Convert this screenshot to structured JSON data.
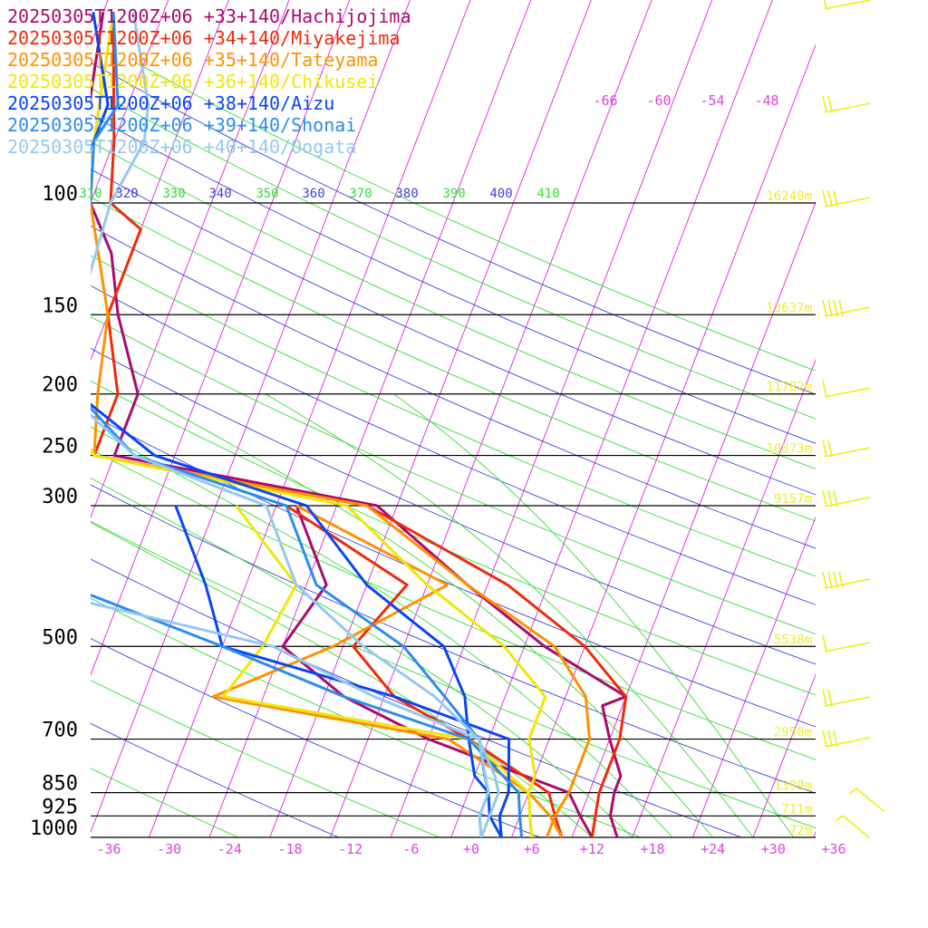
{
  "chart_data": {
    "type": "line",
    "title": "",
    "xlabel": "",
    "ylabel": "",
    "x_axis": {
      "kind": "skewed temperature",
      "unit": "°C",
      "xlim": [
        -36,
        36
      ],
      "ticks": [
        -36,
        -30,
        -24,
        -18,
        -12,
        -6,
        0,
        6,
        12,
        18,
        24,
        30,
        36
      ],
      "tick_labels": [
        "-36",
        "-30",
        "-24",
        "-18",
        "-12",
        "-6",
        "+0",
        "+6",
        "+12",
        "+18",
        "+24",
        "+30",
        "+36"
      ]
    },
    "y_axis": {
      "kind": "pressure",
      "scale": "log",
      "unit": "hPa",
      "ylim": [
        1000,
        100
      ],
      "ticks": [
        100,
        150,
        200,
        250,
        300,
        500,
        700,
        850,
        925,
        1000
      ],
      "tick_labels": [
        "100",
        "150",
        "200",
        "250",
        "300",
        "500",
        "700",
        "850",
        "925",
        "1000"
      ]
    },
    "heights": [
      {
        "p": 100,
        "label": "16240m"
      },
      {
        "p": 150,
        "label": "13637m"
      },
      {
        "p": 200,
        "label": "11782m"
      },
      {
        "p": 250,
        "label": "10373m"
      },
      {
        "p": 300,
        "label": "9157m"
      },
      {
        "p": 500,
        "label": "5538m"
      },
      {
        "p": 700,
        "label": "2950m"
      },
      {
        "p": 850,
        "label": "1399m"
      },
      {
        "p": 925,
        "label": "711m"
      },
      {
        "p": 1000,
        "label": "72m"
      }
    ],
    "upper_temp_labels": [
      "-66",
      "-60",
      "-54",
      "-48"
    ],
    "theta_labels": [
      "310",
      "320",
      "330",
      "340",
      "350",
      "360",
      "370",
      "380",
      "390",
      "400",
      "410"
    ],
    "grid": true,
    "legend_position": "top-left",
    "series": [
      {
        "name": "20250305T1200Z+06 +33+140/Hachijojima",
        "color": "#aa0a6e",
        "temp": [
          [
            1000,
            14.5
          ],
          [
            925,
            13
          ],
          [
            850,
            12.5
          ],
          [
            800,
            12.5
          ],
          [
            700,
            10
          ],
          [
            620,
            8
          ],
          [
            600,
            10
          ],
          [
            500,
            0
          ],
          [
            400,
            -10
          ],
          [
            300,
            -22
          ],
          [
            250,
            -50
          ],
          [
            220,
            -50
          ],
          [
            200,
            -50
          ],
          [
            150,
            -55
          ],
          [
            120,
            -58
          ],
          [
            100,
            -62
          ],
          [
            80,
            -65
          ],
          [
            50,
            -68
          ]
        ],
        "dew": [
          [
            1000,
            12
          ],
          [
            925,
            10
          ],
          [
            850,
            8
          ],
          [
            700,
            -8
          ],
          [
            600,
            -18
          ],
          [
            500,
            -26
          ],
          [
            400,
            -24
          ],
          [
            300,
            -30
          ]
        ]
      },
      {
        "name": "20250305T1200Z+06 +34+140/Miyakejima",
        "color": "#f02a0a",
        "temp": [
          [
            1000,
            12
          ],
          [
            925,
            11.5
          ],
          [
            850,
            11
          ],
          [
            800,
            11
          ],
          [
            700,
            11
          ],
          [
            600,
            10
          ],
          [
            500,
            4
          ],
          [
            400,
            -6
          ],
          [
            300,
            -23
          ],
          [
            250,
            -52
          ],
          [
            200,
            -52
          ],
          [
            150,
            -56
          ],
          [
            110,
            -56
          ],
          [
            100,
            -60
          ],
          [
            80,
            -62
          ],
          [
            50,
            -67
          ]
        ],
        "dew": [
          [
            1000,
            9
          ],
          [
            925,
            7.5
          ],
          [
            850,
            6
          ],
          [
            700,
            -4
          ],
          [
            600,
            -13
          ],
          [
            500,
            -19
          ],
          [
            400,
            -16
          ],
          [
            300,
            -31
          ]
        ]
      },
      {
        "name": "20250305T1200Z+06 +35+140/Tateyama",
        "color": "#ff9000",
        "temp": [
          [
            1000,
            7.5
          ],
          [
            925,
            7.5
          ],
          [
            850,
            8
          ],
          [
            800,
            8
          ],
          [
            700,
            8
          ],
          [
            600,
            6
          ],
          [
            500,
            1
          ],
          [
            400,
            -10
          ],
          [
            300,
            -23
          ],
          [
            250,
            -52
          ],
          [
            200,
            -54
          ],
          [
            150,
            -56
          ],
          [
            100,
            -62
          ],
          [
            80,
            -64
          ],
          [
            50,
            -67
          ]
        ],
        "dew": [
          [
            1000,
            9
          ],
          [
            925,
            7
          ],
          [
            850,
            4
          ],
          [
            700,
            -6
          ],
          [
            600,
            -31
          ],
          [
            500,
            -21
          ],
          [
            400,
            -12
          ],
          [
            300,
            -30
          ]
        ]
      },
      {
        "name": "20250305T1200Z+06 +36+140/Chikusei",
        "color": "#f0e60a",
        "temp": [
          [
            1000,
            6
          ],
          [
            925,
            5
          ],
          [
            850,
            4
          ],
          [
            800,
            4
          ],
          [
            700,
            2
          ],
          [
            600,
            2
          ],
          [
            500,
            -4
          ],
          [
            400,
            -14
          ],
          [
            300,
            -25
          ],
          [
            250,
            -52
          ],
          [
            200,
            -58
          ],
          [
            150,
            -58
          ],
          [
            100,
            -63
          ],
          [
            80,
            -64
          ],
          [
            50,
            -67
          ]
        ],
        "dew": [
          [
            1000,
            6
          ],
          [
            925,
            5
          ],
          [
            850,
            4
          ],
          [
            700,
            -4
          ],
          [
            600,
            -30
          ],
          [
            500,
            -28
          ],
          [
            400,
            -27
          ],
          [
            300,
            -36
          ]
        ]
      },
      {
        "name": "20250305T1200Z+06 +38+140/Aizu",
        "color": "#0a46f0",
        "temp": [
          [
            1000,
            3
          ],
          [
            925,
            1
          ],
          [
            850,
            0
          ],
          [
            800,
            -2
          ],
          [
            700,
            -4
          ],
          [
            600,
            -6
          ],
          [
            500,
            -10
          ],
          [
            400,
            -20
          ],
          [
            300,
            -29
          ],
          [
            250,
            -46
          ],
          [
            200,
            -56
          ],
          [
            150,
            -58
          ],
          [
            100,
            -64
          ],
          [
            70,
            -64
          ],
          [
            50,
            -69
          ]
        ],
        "dew": [
          [
            1000,
            3
          ],
          [
            925,
            2
          ],
          [
            850,
            2
          ],
          [
            700,
            0
          ],
          [
            600,
            -13
          ],
          [
            500,
            -32
          ],
          [
            400,
            -36
          ],
          [
            300,
            -42
          ]
        ]
      },
      {
        "name": "20250305T1200Z+06 +39+140/Shonai",
        "color": "#2a8cf0",
        "temp": [
          [
            1000,
            1
          ],
          [
            925,
            0
          ],
          [
            850,
            0
          ],
          [
            800,
            -1
          ],
          [
            700,
            -3
          ],
          [
            600,
            -8
          ],
          [
            500,
            -14
          ],
          [
            400,
            -25
          ],
          [
            300,
            -31
          ],
          [
            250,
            -48
          ],
          [
            200,
            -56
          ],
          [
            150,
            -60
          ],
          [
            100,
            -62
          ],
          [
            80,
            -64
          ],
          [
            70,
            -63
          ],
          [
            50,
            -67
          ]
        ],
        "dew": [
          [
            1000,
            5
          ],
          [
            925,
            4
          ],
          [
            850,
            3
          ],
          [
            700,
            -4
          ],
          [
            600,
            -18
          ],
          [
            500,
            -32
          ],
          [
            400,
            -50
          ],
          [
            300,
            -55
          ]
        ]
      },
      {
        "name": "20250305T1200Z+06 +40+140/Oogata",
        "color": "#96c8f0",
        "temp": [
          [
            1000,
            1
          ],
          [
            925,
            1
          ],
          [
            850,
            1
          ],
          [
            800,
            0
          ],
          [
            700,
            -3
          ],
          [
            600,
            -9
          ],
          [
            500,
            -18
          ],
          [
            400,
            -27
          ],
          [
            300,
            -33
          ],
          [
            250,
            -48
          ],
          [
            200,
            -57
          ],
          [
            150,
            -59
          ],
          [
            100,
            -60
          ],
          [
            80,
            -59
          ],
          [
            70,
            -60
          ],
          [
            50,
            -65
          ]
        ],
        "dew": [
          [
            1000,
            1
          ],
          [
            925,
            0
          ],
          [
            850,
            0
          ],
          [
            700,
            -3
          ],
          [
            600,
            -15
          ],
          [
            500,
            -27
          ],
          [
            400,
            -55
          ],
          [
            300,
            -60
          ]
        ]
      }
    ]
  }
}
